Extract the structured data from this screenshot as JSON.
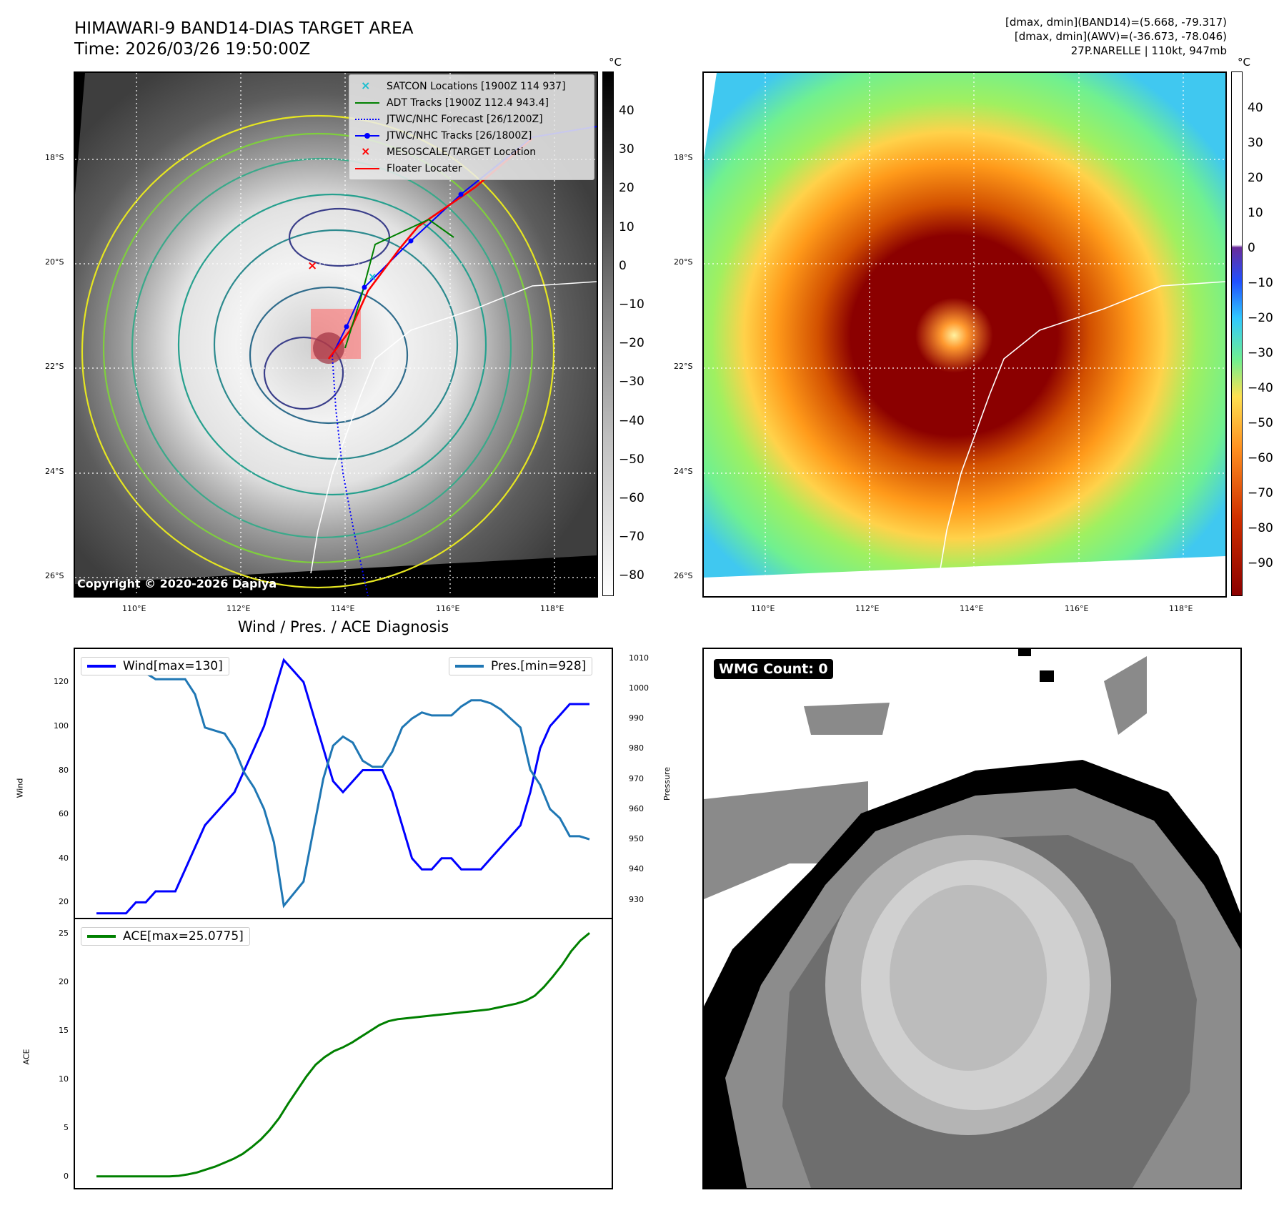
{
  "header": {
    "title_line1": "HIMAWARI-9 BAND14-DIAS TARGET AREA",
    "title_line2": "Time: 2026/03/26 19:50:00Z",
    "info_line1": "[dmax, dmin](BAND14)=(5.668, -79.317)",
    "info_line2": "[dmax, dmin](AWV)=(-36.673, -78.046)",
    "info_line3": "27P.NARELLE | 110kt, 947mb"
  },
  "map": {
    "lat_labels": [
      "18°S",
      "20°S",
      "22°S",
      "24°S",
      "26°S"
    ],
    "lon_labels": [
      "110°E",
      "112°E",
      "114°E",
      "116°E",
      "118°E"
    ],
    "copyright": "Copyright © 2020-2026 Dapiya",
    "legend": [
      {
        "label": "SATCON Locations [1900Z 114 937]",
        "symbol": "x",
        "color": "#17becf"
      },
      {
        "label": "ADT Tracks [1900Z 112.4 943.4]",
        "symbol": "line",
        "color": "#008000"
      },
      {
        "label": "JTWC/NHC Forecast [26/1200Z]",
        "symbol": "dotted",
        "color": "#0000ff"
      },
      {
        "label": "JTWC/NHC Tracks [26/1800Z]",
        "symbol": "line-dot",
        "color": "#0000ff"
      },
      {
        "label": "MESOSCALE/TARGET Location",
        "symbol": "x",
        "color": "#ff0000"
      },
      {
        "label": "Floater Locater",
        "symbol": "line",
        "color": "#ff0000"
      }
    ]
  },
  "colorbar_gray": {
    "unit": "°C",
    "ticks": [
      "40",
      "30",
      "20",
      "10",
      "0",
      "−10",
      "−20",
      "−30",
      "−40",
      "−50",
      "−60",
      "−70",
      "−80"
    ]
  },
  "colorbar_color": {
    "unit": "°C",
    "ticks": [
      "40",
      "30",
      "20",
      "10",
      "0",
      "−10",
      "−20",
      "−30",
      "−40",
      "−50",
      "−60",
      "−70",
      "−80",
      "−90"
    ]
  },
  "wmg": {
    "label": "WMG Count: 0"
  },
  "chart_data": [
    {
      "type": "line",
      "title": "Wind / Pres. / ACE Diagnosis",
      "xlabel": "",
      "ylabel": "Wind",
      "y2label": "Pressure",
      "ylim": [
        13,
        135
      ],
      "y2lim": [
        924,
        1013
      ],
      "yticks": [
        20,
        40,
        60,
        80,
        100,
        120
      ],
      "y2ticks": [
        930,
        940,
        950,
        960,
        970,
        980,
        990,
        1000,
        1010
      ],
      "series": [
        {
          "name": "Wind[max=130]",
          "color": "#0000ff",
          "values": [
            15,
            15,
            15,
            15,
            20,
            20,
            25,
            25,
            25,
            35,
            45,
            55,
            60,
            65,
            70,
            80,
            90,
            100,
            115,
            130,
            125,
            120,
            105,
            90,
            75,
            70,
            75,
            80,
            80,
            80,
            70,
            55,
            40,
            35,
            35,
            40,
            40,
            35,
            35,
            35,
            40,
            45,
            50,
            55,
            70,
            90,
            100,
            105,
            110,
            110,
            110
          ]
        },
        {
          "name": "Pres.[min=928]",
          "color": "#1f77b4",
          "axis": "right",
          "values": [
            1009,
            1009,
            1009,
            1005,
            1006,
            1005,
            1003,
            1003,
            1003,
            1003,
            998,
            987,
            986,
            985,
            980,
            972,
            967,
            960,
            949,
            928,
            932,
            936,
            953,
            970,
            981,
            984,
            982,
            976,
            974,
            974,
            979,
            987,
            990,
            992,
            991,
            991,
            991,
            994,
            996,
            996,
            995,
            993,
            990,
            987,
            973,
            968,
            960,
            957,
            951,
            951,
            950
          ]
        }
      ]
    },
    {
      "type": "line",
      "title": "",
      "ylabel": "ACE",
      "ylim": [
        -1.2,
        26.5
      ],
      "yticks": [
        0,
        5,
        10,
        15,
        20,
        25
      ],
      "series": [
        {
          "name": "ACE[max=25.0775]",
          "color": "#008000",
          "values": [
            0,
            0,
            0,
            0,
            0,
            0,
            0,
            0,
            0,
            0.05,
            0.2,
            0.4,
            0.7,
            1.0,
            1.4,
            1.8,
            2.3,
            3.0,
            3.8,
            4.8,
            6.0,
            7.5,
            8.9,
            10.3,
            11.5,
            12.3,
            12.9,
            13.3,
            13.8,
            14.4,
            15.0,
            15.6,
            16.0,
            16.2,
            16.3,
            16.4,
            16.5,
            16.6,
            16.7,
            16.8,
            16.9,
            17.0,
            17.1,
            17.2,
            17.4,
            17.6,
            17.8,
            18.1,
            18.6,
            19.5,
            20.6,
            21.8,
            23.2,
            24.3,
            25.0775
          ]
        }
      ]
    }
  ]
}
